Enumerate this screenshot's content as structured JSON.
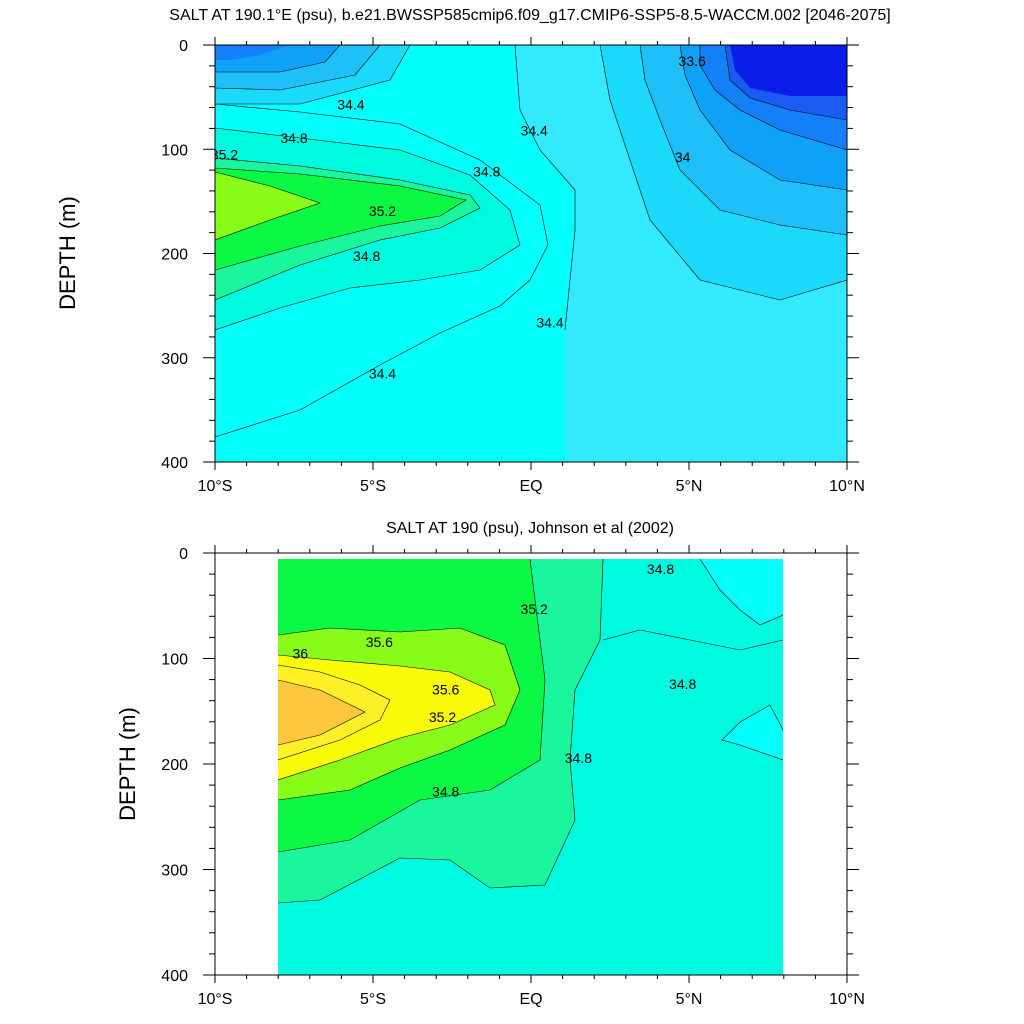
{
  "chart_data": [
    {
      "type": "heatmap",
      "subtype": "filled-contour",
      "title": "SALT AT 190.1°E (psu), b.e21.BWSSP585cmip6.f09_g17.CMIP6-SSP5-8.5-WACCM.002 [2046-2075]",
      "ylabel": "DEPTH (m)",
      "xlabel": "",
      "xlim": [
        -10,
        10
      ],
      "ylim": [
        400,
        0
      ],
      "y_inverted": true,
      "x_ticks": [
        -10,
        -5,
        0,
        5,
        10
      ],
      "x_tick_labels": [
        "10°S",
        "5°S",
        "EQ",
        "5°N",
        "10°N"
      ],
      "y_ticks": [
        0,
        100,
        200,
        300,
        400
      ],
      "y_tick_labels": [
        "0",
        "100",
        "200",
        "300",
        "400"
      ],
      "contour_levels": [
        33.2,
        33.4,
        33.6,
        33.8,
        34.0,
        34.2,
        34.4,
        34.6,
        34.8,
        35.0,
        35.2,
        35.4
      ],
      "contour_labels": [
        {
          "text": "34.4",
          "lon": -5.7,
          "depth": 62
        },
        {
          "text": "34.8",
          "lon": -7.5,
          "depth": 94
        },
        {
          "text": "35.2",
          "lon": -9.7,
          "depth": 110
        },
        {
          "text": "34.8",
          "lon": -1.4,
          "depth": 126
        },
        {
          "text": "35.2",
          "lon": -4.7,
          "depth": 164
        },
        {
          "text": "34.8",
          "lon": -5.2,
          "depth": 207
        },
        {
          "text": "34.4",
          "lon": 0.1,
          "depth": 87
        },
        {
          "text": "33.6",
          "lon": 5.1,
          "depth": 20
        },
        {
          "text": "34",
          "lon": 4.8,
          "depth": 112
        },
        {
          "text": "34.4",
          "lon": 0.6,
          "depth": 271
        },
        {
          "text": "34.4",
          "lon": -4.7,
          "depth": 320
        }
      ],
      "data_extent": {
        "lon": [
          -10,
          10
        ],
        "depth": [
          0,
          400
        ]
      }
    },
    {
      "type": "heatmap",
      "subtype": "filled-contour",
      "title": "SALT AT 190 (psu), Johnson et al (2002)",
      "ylabel": "DEPTH (m)",
      "xlabel": "",
      "xlim": [
        -10,
        10
      ],
      "ylim": [
        400,
        0
      ],
      "y_inverted": true,
      "x_ticks": [
        -10,
        -5,
        0,
        5,
        10
      ],
      "x_tick_labels": [
        "10°S",
        "5°S",
        "EQ",
        "5°N",
        "10°N"
      ],
      "y_ticks": [
        0,
        100,
        200,
        300,
        400
      ],
      "y_tick_labels": [
        "0",
        "100",
        "200",
        "300",
        "400"
      ],
      "contour_levels": [
        34.4,
        34.6,
        34.8,
        35.0,
        35.2,
        35.4,
        35.6,
        35.8,
        36.0,
        36.2
      ],
      "contour_labels": [
        {
          "text": "34.8",
          "lon": 4.1,
          "depth": 20
        },
        {
          "text": "35.2",
          "lon": 0.1,
          "depth": 58
        },
        {
          "text": "35.6",
          "lon": -4.8,
          "depth": 89
        },
        {
          "text": "36",
          "lon": -7.3,
          "depth": 100
        },
        {
          "text": "34.8",
          "lon": 4.8,
          "depth": 129
        },
        {
          "text": "35.6",
          "lon": -2.7,
          "depth": 134
        },
        {
          "text": "35.2",
          "lon": -2.8,
          "depth": 160
        },
        {
          "text": "34.8",
          "lon": 1.5,
          "depth": 199
        },
        {
          "text": "34.8",
          "lon": -2.7,
          "depth": 231
        }
      ],
      "data_extent": {
        "lon": [
          -8,
          8
        ],
        "depth": [
          0,
          400
        ]
      }
    }
  ],
  "colors": {
    "33.2": "#0b1de8",
    "33.4": "#1a5cf2",
    "33.6": "#1480f7",
    "33.8": "#0fa0f7",
    "34.0": "#1fbff9",
    "34.2": "#1ad9fb",
    "34.4": "#33e9fd",
    "34.6": "#03fefb",
    "34.8": "#00fadf",
    "35.0": "#19f69e",
    "35.2": "#0bf945",
    "35.4": "#89fb18",
    "35.6": "#fafa0b",
    "35.8": "#fdf026",
    "36.0": "#fcc73d"
  }
}
